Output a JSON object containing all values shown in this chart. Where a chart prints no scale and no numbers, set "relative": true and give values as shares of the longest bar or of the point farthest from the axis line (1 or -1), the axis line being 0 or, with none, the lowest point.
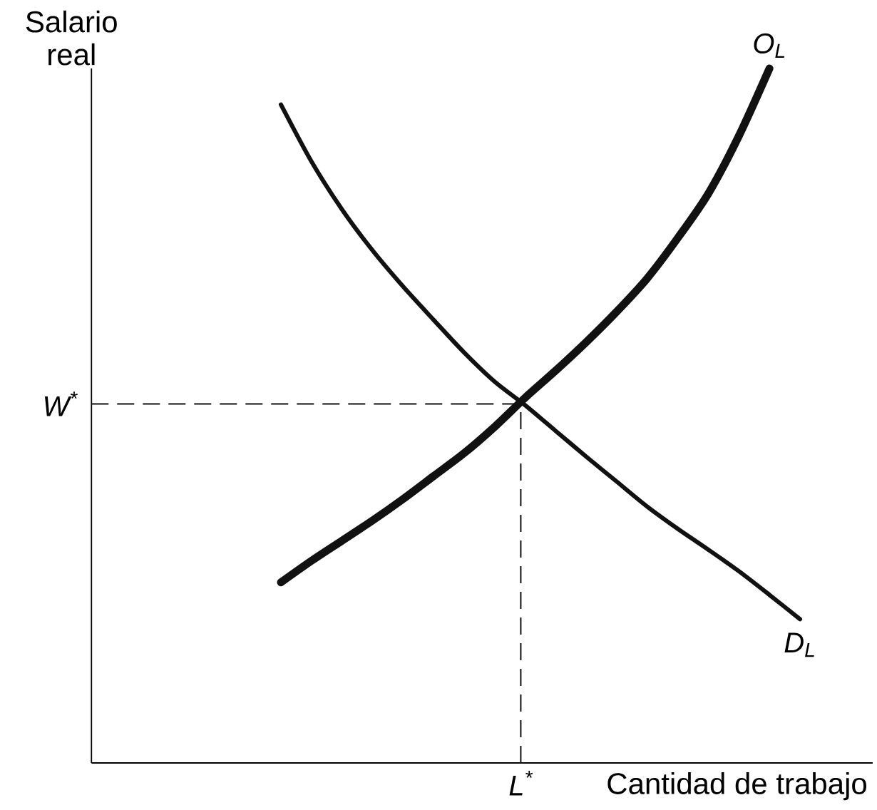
{
  "chart_data": {
    "type": "line",
    "relative": true,
    "ylabel": "Salario real",
    "xlabel": "Cantidad de trabajo",
    "categories": [
      null,
      null,
      null,
      null,
      null,
      null,
      null,
      null,
      null,
      null,
      null,
      null,
      null,
      null,
      null,
      null,
      null,
      null
    ],
    "series": [
      {
        "name": "O$_{L}$",
        "color": "#111111",
        "values": [
          0.26,
          0.291,
          0.32,
          0.349,
          0.38,
          0.413,
          0.446,
          0.484,
          0.526,
          0.565,
          0.606,
          0.65,
          0.698,
          0.756,
          0.82,
          0.903,
          1.0,
          null
        ]
      },
      {
        "name": "D$_{L}$",
        "color": "#111111",
        "values": [
          0.948,
          0.866,
          0.797,
          0.738,
          0.686,
          0.638,
          0.591,
          0.549,
          0.515,
          0.478,
          0.441,
          0.405,
          0.369,
          0.337,
          0.307,
          0.276,
          0.242,
          0.207
        ]
      }
    ],
    "ref_lines": [
      {
        "axis": "y",
        "value": 0.517,
        "label": "W$^{*}$",
        "line_style": "dashed"
      }
    ],
    "annotations": [
      "L$^{*}$"
    ]
  }
}
